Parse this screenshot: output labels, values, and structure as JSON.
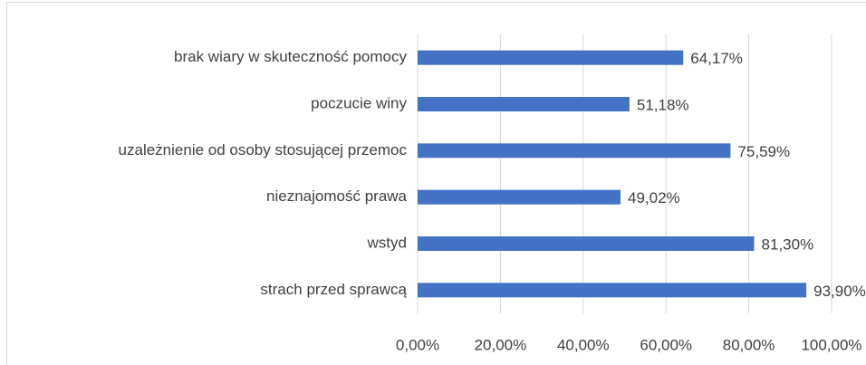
{
  "chart_data": {
    "type": "bar",
    "orientation": "horizontal",
    "categories": [
      "brak wiary w skuteczność pomocy",
      "poczucie winy",
      "uzależnienie od osoby stosującej przemoc",
      "nieznajomość prawa",
      "wstyd",
      "strach przed sprawcą"
    ],
    "values": [
      64.17,
      51.18,
      75.59,
      49.02,
      81.3,
      93.9
    ],
    "value_labels": [
      "64,17%",
      "51,18%",
      "75,59%",
      "49,02%",
      "81,30%",
      "93,90%"
    ],
    "color": "#4472c4",
    "xlim": [
      0,
      100
    ],
    "xticks": [
      {
        "value": 0,
        "label": "0,00%"
      },
      {
        "value": 20,
        "label": "20,00%"
      },
      {
        "value": 40,
        "label": "40,00%"
      },
      {
        "value": 60,
        "label": "60,00%"
      },
      {
        "value": 80,
        "label": "80,00%"
      },
      {
        "value": 100,
        "label": "100,00%"
      }
    ],
    "grid": true
  }
}
